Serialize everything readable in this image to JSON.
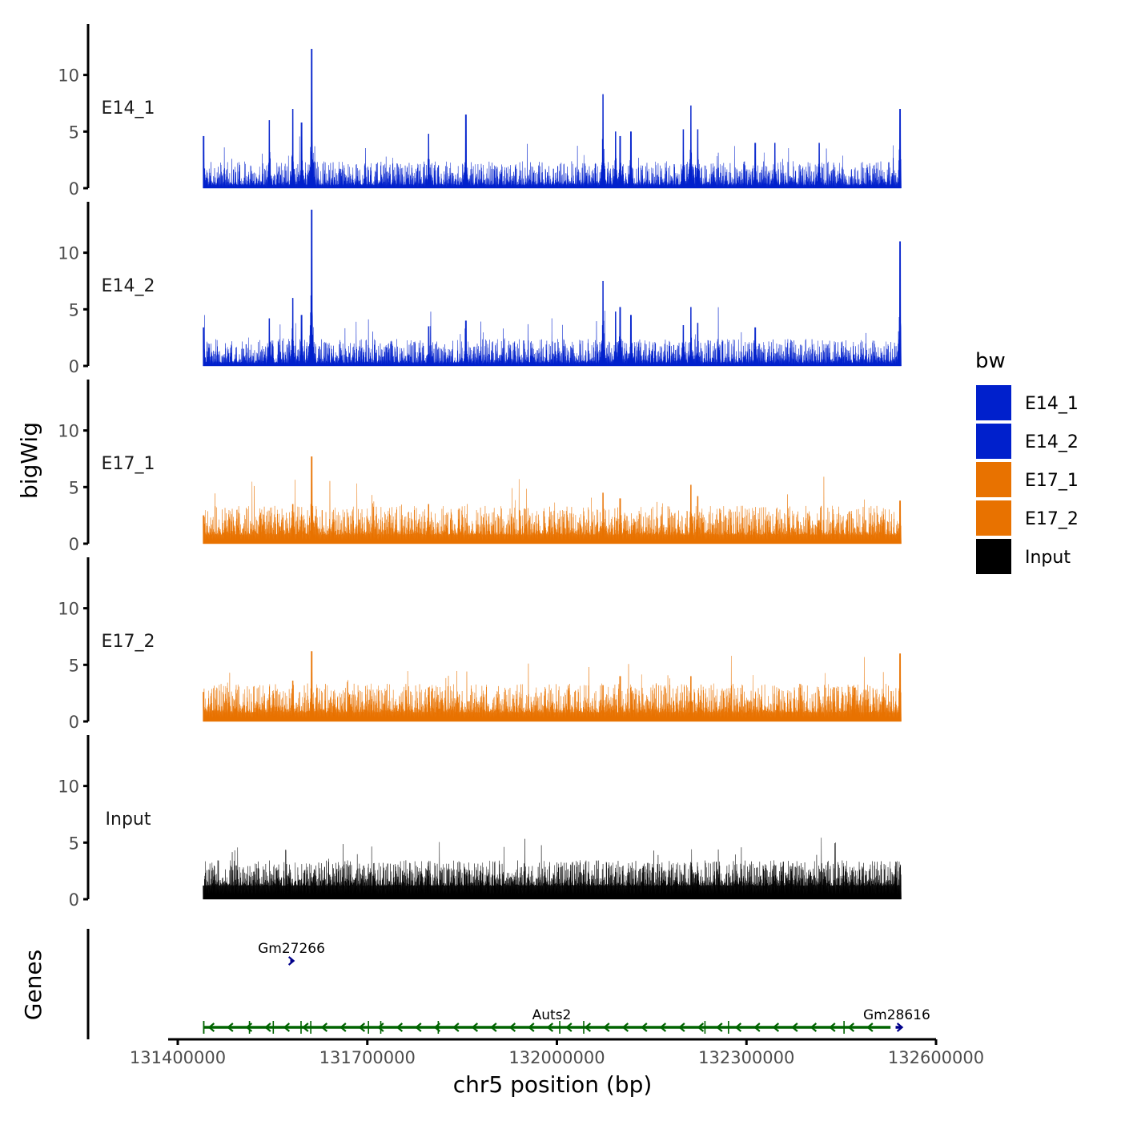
{
  "chart_data": {
    "type": "area",
    "title": "",
    "xlabel": "chr5 position (bp)",
    "ylabel": "bigWig",
    "genes_label": "Genes",
    "xlim": [
      131400000,
      132600000
    ],
    "data_xrange": [
      131440000,
      132545000
    ],
    "x_ticks": [
      131400000,
      131700000,
      132000000,
      132300000,
      132600000
    ],
    "x_tick_labels": [
      "131400000",
      "131700000",
      "132000000",
      "132300000",
      "132600000"
    ],
    "ylim": [
      0,
      14.5
    ],
    "y_ticks": [
      0,
      5,
      10
    ],
    "y_tick_labels": [
      "0",
      "5",
      "10"
    ],
    "legend": {
      "title": "bw",
      "position": "right",
      "entries": [
        {
          "label": "E14_1",
          "color": "#0020CC"
        },
        {
          "label": "E14_2",
          "color": "#0020CC"
        },
        {
          "label": "E17_1",
          "color": "#E87200"
        },
        {
          "label": "E17_2",
          "color": "#E87200"
        },
        {
          "label": "Input",
          "color": "#000000"
        }
      ]
    },
    "series": [
      {
        "name": "E14_1",
        "color": "#0020CC",
        "baseline": [
          0.3,
          1.6
        ],
        "seed": 11,
        "peaks": [
          [
            131441000,
            4.6
          ],
          [
            131545000,
            6.0
          ],
          [
            131582000,
            7.0
          ],
          [
            131596000,
            5.8
          ],
          [
            131612000,
            12.3
          ],
          [
            131797000,
            4.8
          ],
          [
            131856000,
            6.5
          ],
          [
            132073000,
            8.3
          ],
          [
            132093000,
            5.0
          ],
          [
            132100000,
            4.6
          ],
          [
            132117000,
            5.0
          ],
          [
            132200000,
            5.2
          ],
          [
            132212000,
            7.3
          ],
          [
            132223000,
            5.2
          ],
          [
            132314000,
            4.0
          ],
          [
            132345000,
            4.0
          ],
          [
            132415000,
            4.0
          ],
          [
            132543000,
            7.0
          ]
        ]
      },
      {
        "name": "E14_2",
        "color": "#0020CC",
        "baseline": [
          0.3,
          1.6
        ],
        "seed": 23,
        "peaks": [
          [
            131441000,
            3.4
          ],
          [
            131545000,
            4.2
          ],
          [
            131582000,
            6.0
          ],
          [
            131596000,
            4.5
          ],
          [
            131612000,
            13.8
          ],
          [
            131797000,
            3.5
          ],
          [
            131856000,
            4.0
          ],
          [
            132073000,
            7.5
          ],
          [
            132093000,
            4.8
          ],
          [
            132100000,
            5.2
          ],
          [
            132117000,
            4.5
          ],
          [
            132200000,
            3.6
          ],
          [
            132212000,
            5.2
          ],
          [
            132223000,
            3.8
          ],
          [
            132314000,
            3.4
          ],
          [
            132543000,
            11.0
          ]
        ]
      },
      {
        "name": "E17_1",
        "color": "#E87200",
        "baseline": [
          0.8,
          2.4
        ],
        "seed": 37,
        "peaks": [
          [
            131441000,
            2.5
          ],
          [
            131582000,
            3.5
          ],
          [
            131612000,
            7.7
          ],
          [
            131797000,
            3.5
          ],
          [
            132073000,
            4.5
          ],
          [
            132100000,
            4.0
          ],
          [
            132212000,
            5.2
          ],
          [
            132223000,
            4.2
          ],
          [
            132543000,
            3.8
          ]
        ]
      },
      {
        "name": "E17_2",
        "color": "#E87200",
        "baseline": [
          0.8,
          2.4
        ],
        "seed": 41,
        "peaks": [
          [
            131441000,
            2.6
          ],
          [
            131582000,
            3.6
          ],
          [
            131612000,
            6.2
          ],
          [
            131797000,
            3.0
          ],
          [
            132073000,
            3.2
          ],
          [
            132100000,
            4.0
          ],
          [
            132212000,
            4.0
          ],
          [
            132543000,
            6.0
          ]
        ]
      },
      {
        "name": "Input",
        "color": "#000000",
        "baseline": [
          1.2,
          2.6
        ],
        "seed": 53,
        "peaks": []
      }
    ],
    "genes": [
      {
        "name": "Gm27266",
        "start": 131578000,
        "end": 131582000,
        "strand": "+",
        "color": "#00008B",
        "row": "top"
      },
      {
        "name": "Auts2",
        "start": 131441000,
        "end": 132528000,
        "strand": "-",
        "color": "#006400",
        "row": "bottom"
      },
      {
        "name": "Gm28616",
        "start": 132536000,
        "end": 132545000,
        "strand": "+",
        "color": "#00008B",
        "row": "bottom"
      }
    ]
  }
}
